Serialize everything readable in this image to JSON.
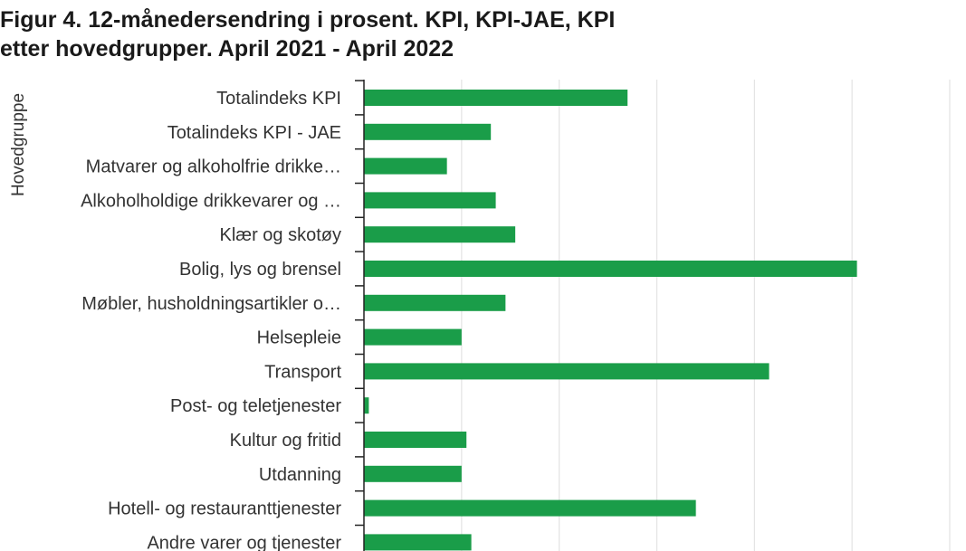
{
  "chart_data": {
    "type": "bar",
    "orientation": "horizontal",
    "title_lines": [
      "Figur 4. 12-månedersendring i prosent. KPI, KPI-JAE, KPI",
      "etter hovedgrupper. April 2021 - April 2022"
    ],
    "ylabel": "Hovedgruppe",
    "xlabel": "",
    "categories": [
      "Totalindeks KPI",
      "Totalindeks KPI - JAE",
      "Matvarer og alkoholfrie drikke…",
      "Alkoholholdige drikkevarer og …",
      "Klær og skotøy",
      "Bolig, lys og brensel",
      "Møbler, husholdningsartikler o…",
      "Helsepleie",
      "Transport",
      "Post- og teletjenester",
      "Kultur og fritid",
      "Utdanning",
      "Hotell- og restauranttjenester",
      "Andre varer og tjenester"
    ],
    "values": [
      5.4,
      2.6,
      1.7,
      2.7,
      3.1,
      10.1,
      2.9,
      2.0,
      8.3,
      0.1,
      2.1,
      2.0,
      6.8,
      2.2
    ],
    "xlim": [
      0,
      12
    ],
    "gridlines_at": [
      2,
      4,
      6,
      8,
      10,
      12
    ],
    "grid": true,
    "legend": "none",
    "bar_color": "#1a9d49"
  }
}
